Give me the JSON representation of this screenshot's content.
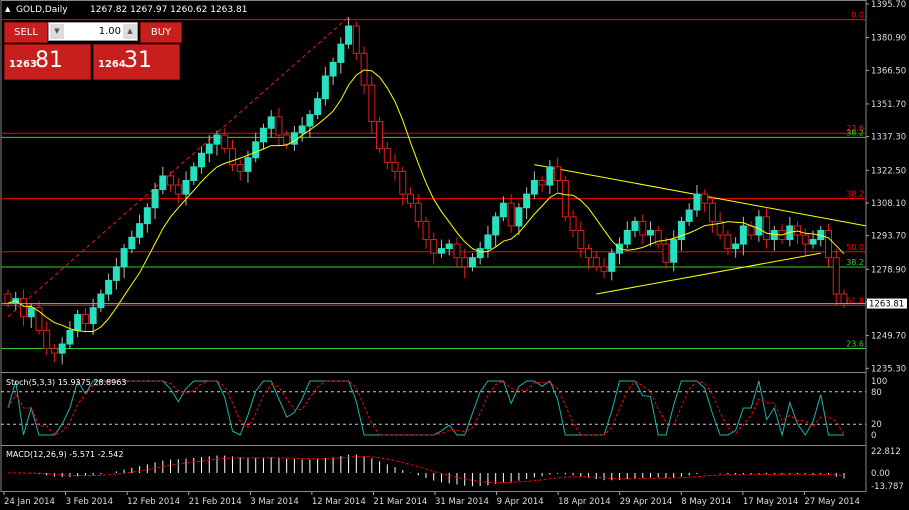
{
  "header": {
    "symbol": "GOLD,Daily",
    "ohlc": "1267.82 1267.97 1260.62 1263.81"
  },
  "trade_panel": {
    "sell_label": "SELL",
    "buy_label": "BUY",
    "lot_value": "1.00",
    "sell_price_small": "1263",
    "sell_price_big": "81",
    "buy_price_small": "1264",
    "buy_price_big": "31"
  },
  "icons": {
    "header": "triangle-up-icon",
    "lot_down": "down-arrow-icon",
    "lot_up": "up-arrow-icon"
  },
  "colors": {
    "background": "#000000",
    "bull": "#26e0c0",
    "bear": "#e01e1e",
    "ma": "#ffff00",
    "fib_red": "#ff0000",
    "fib_green": "#32cd32",
    "triangle": "#ffff00",
    "stoch_main": "#20b2aa",
    "stoch_signal": "#ff0000",
    "macd_hist": "#ffffff",
    "macd_signal": "#ff0000"
  },
  "chart_data": {
    "type": "candlestick",
    "ylim": [
      1235.0,
      1395.7
    ],
    "price_ticks": [
      "1395.70",
      "1380.90",
      "1366.50",
      "1351.70",
      "1337.30",
      "1322.50",
      "1308.10",
      "1293.70",
      "1278.90",
      "1264.50",
      "1249.70",
      "1235.30"
    ],
    "current_price": "1263.81",
    "x_labels": [
      "24 Jan 2014",
      "3 Feb 2014",
      "12 Feb 2014",
      "21 Feb 2014",
      "3 Mar 2014",
      "12 Mar 2014",
      "21 Mar 2014",
      "31 Mar 2014",
      "9 Apr 2014",
      "18 Apr 2014",
      "29 Apr 2014",
      "8 May 2014",
      "17 May 2014",
      "27 May 2014"
    ],
    "closes": [
      1264,
      1266,
      1258,
      1262,
      1252,
      1244,
      1242,
      1246,
      1252,
      1259,
      1255,
      1262,
      1268,
      1274,
      1280,
      1288,
      1293,
      1299,
      1306,
      1314,
      1320,
      1316,
      1312,
      1318,
      1324,
      1330,
      1334,
      1338,
      1332,
      1325,
      1322,
      1328,
      1335,
      1341,
      1346,
      1338,
      1334,
      1339,
      1342,
      1347,
      1354,
      1364,
      1370,
      1378,
      1386,
      1374,
      1360,
      1344,
      1332,
      1326,
      1322,
      1312,
      1308,
      1300,
      1292,
      1286,
      1288,
      1290,
      1284,
      1280,
      1284,
      1288,
      1294,
      1302,
      1308,
      1298,
      1306,
      1312,
      1318,
      1316,
      1324,
      1318,
      1302,
      1296,
      1288,
      1284,
      1280,
      1278,
      1286,
      1290,
      1296,
      1300,
      1294,
      1296,
      1290,
      1282,
      1292,
      1300,
      1305,
      1312,
      1308,
      1300,
      1294,
      1288,
      1290,
      1298,
      1294,
      1302,
      1292,
      1296,
      1292,
      1298,
      1294,
      1290,
      1292,
      1296,
      1284,
      1268,
      1263.8
    ],
    "fib_levels": [
      {
        "label": "0.0",
        "price": 1388.8,
        "color": "red"
      },
      {
        "label": "23.6",
        "price": 1338.8,
        "color": "red"
      },
      {
        "label": "38.2",
        "price": 1310.0,
        "color": "red"
      },
      {
        "label": "50.0",
        "price": 1286.6,
        "color": "red"
      },
      {
        "label": "61.8",
        "price": 1263.0,
        "color": "red"
      },
      {
        "label": "38.2",
        "price": 1337.0,
        "color": "green"
      },
      {
        "label": "38.2",
        "price": 1279.9,
        "color": "green"
      },
      {
        "label": "23.6",
        "price": 1244.0,
        "color": "green"
      }
    ],
    "stochastic": {
      "label": "Stoch(5,3,3) 15.9375 28.8963",
      "ylim": [
        0,
        100
      ],
      "ticks": [
        "100",
        "80",
        "20",
        "0"
      ]
    },
    "macd": {
      "label": "MACD(12,26,9) -5.571 -2.542",
      "ticks": [
        "22.812",
        "0.00",
        "-13.787"
      ]
    }
  }
}
